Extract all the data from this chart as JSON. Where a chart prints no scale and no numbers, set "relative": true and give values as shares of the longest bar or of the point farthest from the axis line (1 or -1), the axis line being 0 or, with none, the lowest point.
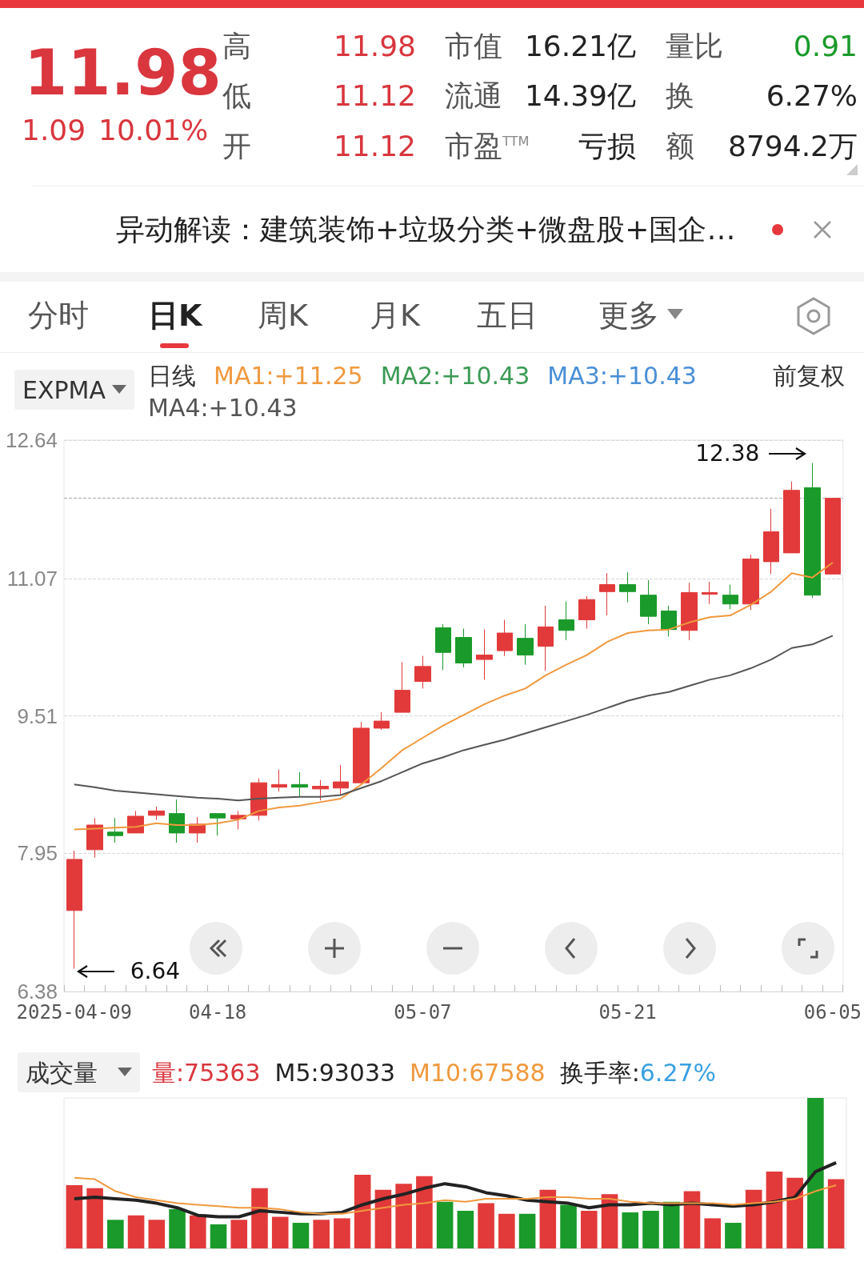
{
  "chart_data": [
    {
      "type": "other",
      "annotations": [
        "11.98",
        "1.09",
        "10.01%",
        "高",
        "11.98",
        "市值",
        "16.21亿",
        "量比",
        "0.91",
        "低",
        "11.12",
        "流通",
        "14.39亿",
        "换",
        "6.27%",
        "开",
        "11.12",
        "市盈$^{TTM}$",
        "亏损",
        "额",
        "8794.2万",
        "异动解读：建筑装饰+垃圾分类+微盘股+国企…",
        "分时",
        "日K",
        "周K",
        "月K",
        "五日",
        "更多"
      ]
    },
    {
      "type": "candlestick",
      "title": "EXPMA",
      "legend_title": "日线",
      "legend": "top left",
      "marker": "none",
      "grid": "y",
      "categories": [
        "2025-04-09",
        null,
        null,
        null,
        null,
        null,
        null,
        "04-18",
        null,
        null,
        null,
        null,
        null,
        null,
        null,
        null,
        null,
        "05-07",
        null,
        null,
        null,
        null,
        null,
        null,
        null,
        null,
        null,
        "05-21",
        null,
        null,
        null,
        null,
        null,
        null,
        null,
        null,
        null,
        "06-05"
      ],
      "ohlc": [
        [
          7.3,
          7.98,
          6.64,
          7.88
        ],
        [
          7.99,
          8.35,
          7.9,
          8.27
        ],
        [
          8.19,
          8.35,
          8.07,
          8.15
        ],
        [
          8.18,
          8.43,
          8.18,
          8.37
        ],
        [
          8.38,
          8.48,
          8.33,
          8.43
        ],
        [
          8.4,
          8.56,
          8.07,
          8.18
        ],
        [
          8.18,
          8.36,
          8.07,
          8.28
        ],
        [
          8.4,
          8.4,
          8.15,
          8.35
        ],
        [
          8.34,
          8.43,
          8.22,
          8.38
        ],
        [
          8.38,
          8.8,
          8.32,
          8.75
        ],
        [
          8.7,
          8.9,
          8.65,
          8.73
        ],
        [
          8.73,
          8.87,
          8.59,
          8.7
        ],
        [
          8.68,
          8.78,
          8.55,
          8.71
        ],
        [
          8.69,
          8.95,
          8.61,
          8.76
        ],
        [
          8.75,
          9.44,
          8.73,
          9.37
        ],
        [
          9.37,
          9.55,
          9.35,
          9.45
        ],
        [
          9.55,
          10.12,
          9.55,
          9.8
        ],
        [
          9.9,
          10.19,
          9.82,
          10.07
        ],
        [
          10.51,
          10.55,
          10.03,
          10.23
        ],
        [
          10.4,
          10.5,
          10.06,
          10.11
        ],
        [
          10.15,
          10.49,
          9.92,
          10.2
        ],
        [
          10.25,
          10.6,
          10.19,
          10.45
        ],
        [
          10.39,
          10.55,
          10.09,
          10.2
        ],
        [
          10.3,
          10.76,
          10.02,
          10.52
        ],
        [
          10.6,
          10.81,
          10.37,
          10.48
        ],
        [
          10.6,
          10.87,
          10.5,
          10.83
        ],
        [
          10.92,
          11.13,
          10.65,
          11.0
        ],
        [
          11.0,
          11.14,
          10.8,
          10.92
        ],
        [
          10.88,
          11.05,
          10.55,
          10.64
        ],
        [
          10.7,
          10.76,
          10.41,
          10.49
        ],
        [
          10.48,
          11.02,
          10.37,
          10.91
        ],
        [
          10.89,
          11.03,
          10.78,
          10.91
        ],
        [
          10.88,
          11.0,
          10.72,
          10.78
        ],
        [
          10.78,
          11.34,
          10.71,
          11.29
        ],
        [
          11.26,
          11.86,
          11.12,
          11.6
        ],
        [
          11.36,
          12.17,
          11.36,
          12.07
        ],
        [
          12.1,
          12.38,
          10.85,
          10.88
        ],
        [
          11.12,
          11.98,
          11.12,
          11.98
        ]
      ],
      "colors": [
        "#e23a3a",
        "#e23a3a",
        "#1a9a2a",
        "#e23a3a",
        "#e23a3a",
        "#1a9a2a",
        "#e23a3a",
        "#1a9a2a",
        "#e23a3a",
        "#e23a3a",
        "#e23a3a",
        "#1a9a2a",
        "#e23a3a",
        "#e23a3a",
        "#e23a3a",
        "#e23a3a",
        "#e23a3a",
        "#e23a3a",
        "#1a9a2a",
        "#1a9a2a",
        "#e23a3a",
        "#e23a3a",
        "#1a9a2a",
        "#e23a3a",
        "#1a9a2a",
        "#e23a3a",
        "#e23a3a",
        "#1a9a2a",
        "#1a9a2a",
        "#1a9a2a",
        "#e23a3a",
        "#e23a3a",
        "#1a9a2a",
        "#e23a3a",
        "#e23a3a",
        "#e23a3a",
        "#1a9a2a",
        "#e23a3a"
      ],
      "series": [
        {
          "type": "line",
          "name": "MA1:+11.25",
          "color": "#f0993e",
          "values": [
            8.22,
            8.23,
            8.24,
            8.25,
            8.29,
            8.27,
            8.27,
            8.29,
            8.33,
            8.43,
            8.47,
            8.49,
            8.53,
            8.57,
            8.73,
            8.92,
            9.12,
            9.26,
            9.4,
            9.52,
            9.64,
            9.74,
            9.82,
            9.97,
            10.09,
            10.2,
            10.35,
            10.45,
            10.48,
            10.49,
            10.57,
            10.63,
            10.65,
            10.77,
            10.92,
            11.13,
            11.08,
            11.25
          ]
        },
        {
          "type": "line",
          "name": "MA4:+10.43",
          "color": "#555555",
          "values": [
            8.73,
            8.7,
            8.66,
            8.64,
            8.62,
            8.6,
            8.58,
            8.57,
            8.55,
            8.57,
            8.58,
            8.59,
            8.59,
            8.61,
            8.69,
            8.77,
            8.87,
            8.97,
            9.04,
            9.12,
            9.18,
            9.24,
            9.31,
            9.38,
            9.45,
            9.52,
            9.6,
            9.68,
            9.74,
            9.78,
            9.85,
            9.92,
            9.97,
            10.05,
            10.15,
            10.28,
            10.32,
            10.42
          ]
        }
      ],
      "ylim": [
        6.38,
        12.64
      ],
      "yticks": [
        6.38,
        7.95,
        9.51,
        11.07,
        12.64
      ],
      "ref_lines": [
        {
          "axis": "y",
          "value": 11.98,
          "color": "#aaaaaa",
          "line_style": "dashed"
        }
      ],
      "annotations": [
        "MA2:+10.43",
        "MA3:+10.43",
        "前复权",
        "12.38",
        "6.64"
      ]
    },
    {
      "type": "bar",
      "relative": true,
      "title": "成交量",
      "legend": "top left",
      "marker": "none",
      "categories": [
        null,
        null,
        null,
        null,
        null,
        null,
        null,
        null,
        null,
        null,
        null,
        null,
        null,
        null,
        null,
        null,
        null,
        null,
        null,
        null,
        null,
        null,
        null,
        null,
        null,
        null,
        null,
        null,
        null,
        null,
        null,
        null,
        null,
        null,
        null,
        null,
        null,
        null
      ],
      "series": [
        {
          "type": "bar",
          "values": [
            0.42,
            0.4,
            0.19,
            0.22,
            0.19,
            0.26,
            0.22,
            0.16,
            0.19,
            0.4,
            0.21,
            0.17,
            0.19,
            0.2,
            0.49,
            0.39,
            0.43,
            0.48,
            0.31,
            0.25,
            0.3,
            0.23,
            0.23,
            0.39,
            0.29,
            0.25,
            0.36,
            0.24,
            0.25,
            0.31,
            0.38,
            0.2,
            0.17,
            0.39,
            0.51,
            0.47,
            1,
            0.46
          ],
          "colors": [
            "#e23a3a",
            "#e23a3a",
            "#1a9a2a",
            "#e23a3a",
            "#e23a3a",
            "#1a9a2a",
            "#e23a3a",
            "#1a9a2a",
            "#e23a3a",
            "#e23a3a",
            "#e23a3a",
            "#1a9a2a",
            "#e23a3a",
            "#e23a3a",
            "#e23a3a",
            "#e23a3a",
            "#e23a3a",
            "#e23a3a",
            "#1a9a2a",
            "#1a9a2a",
            "#e23a3a",
            "#e23a3a",
            "#1a9a2a",
            "#e23a3a",
            "#1a9a2a",
            "#e23a3a",
            "#e23a3a",
            "#1a9a2a",
            "#1a9a2a",
            "#1a9a2a",
            "#e23a3a",
            "#e23a3a",
            "#1a9a2a",
            "#e23a3a",
            "#e23a3a",
            "#e23a3a",
            "#1a9a2a",
            "#e23a3a"
          ]
        },
        {
          "type": "line",
          "name": "M5:93033",
          "color": "#222222",
          "values": [
            0.33,
            0.34,
            0.33,
            0.32,
            0.3,
            0.27,
            0.22,
            0.21,
            0.21,
            0.25,
            0.24,
            0.23,
            0.23,
            0.24,
            0.29,
            0.33,
            0.36,
            0.4,
            0.43,
            0.41,
            0.37,
            0.35,
            0.32,
            0.31,
            0.3,
            0.27,
            0.29,
            0.29,
            0.3,
            0.29,
            0.3,
            0.29,
            0.28,
            0.29,
            0.31,
            0.34,
            0.51,
            0.57
          ]
        },
        {
          "type": "line",
          "name": "M10:67588",
          "color": "#f0993e",
          "values": [
            0.47,
            0.46,
            0.38,
            0.34,
            0.32,
            0.3,
            0.29,
            0.28,
            0.27,
            0.27,
            0.26,
            0.24,
            0.23,
            0.23,
            0.25,
            0.27,
            0.29,
            0.3,
            0.32,
            0.31,
            0.33,
            0.33,
            0.33,
            0.34,
            0.34,
            0.33,
            0.33,
            0.31,
            0.3,
            0.3,
            0.3,
            0.3,
            0.29,
            0.3,
            0.31,
            0.33,
            0.38,
            0.42
          ]
        }
      ],
      "annotations": [
        "量:75363",
        "换手率:6.27%"
      ]
    }
  ]
}
